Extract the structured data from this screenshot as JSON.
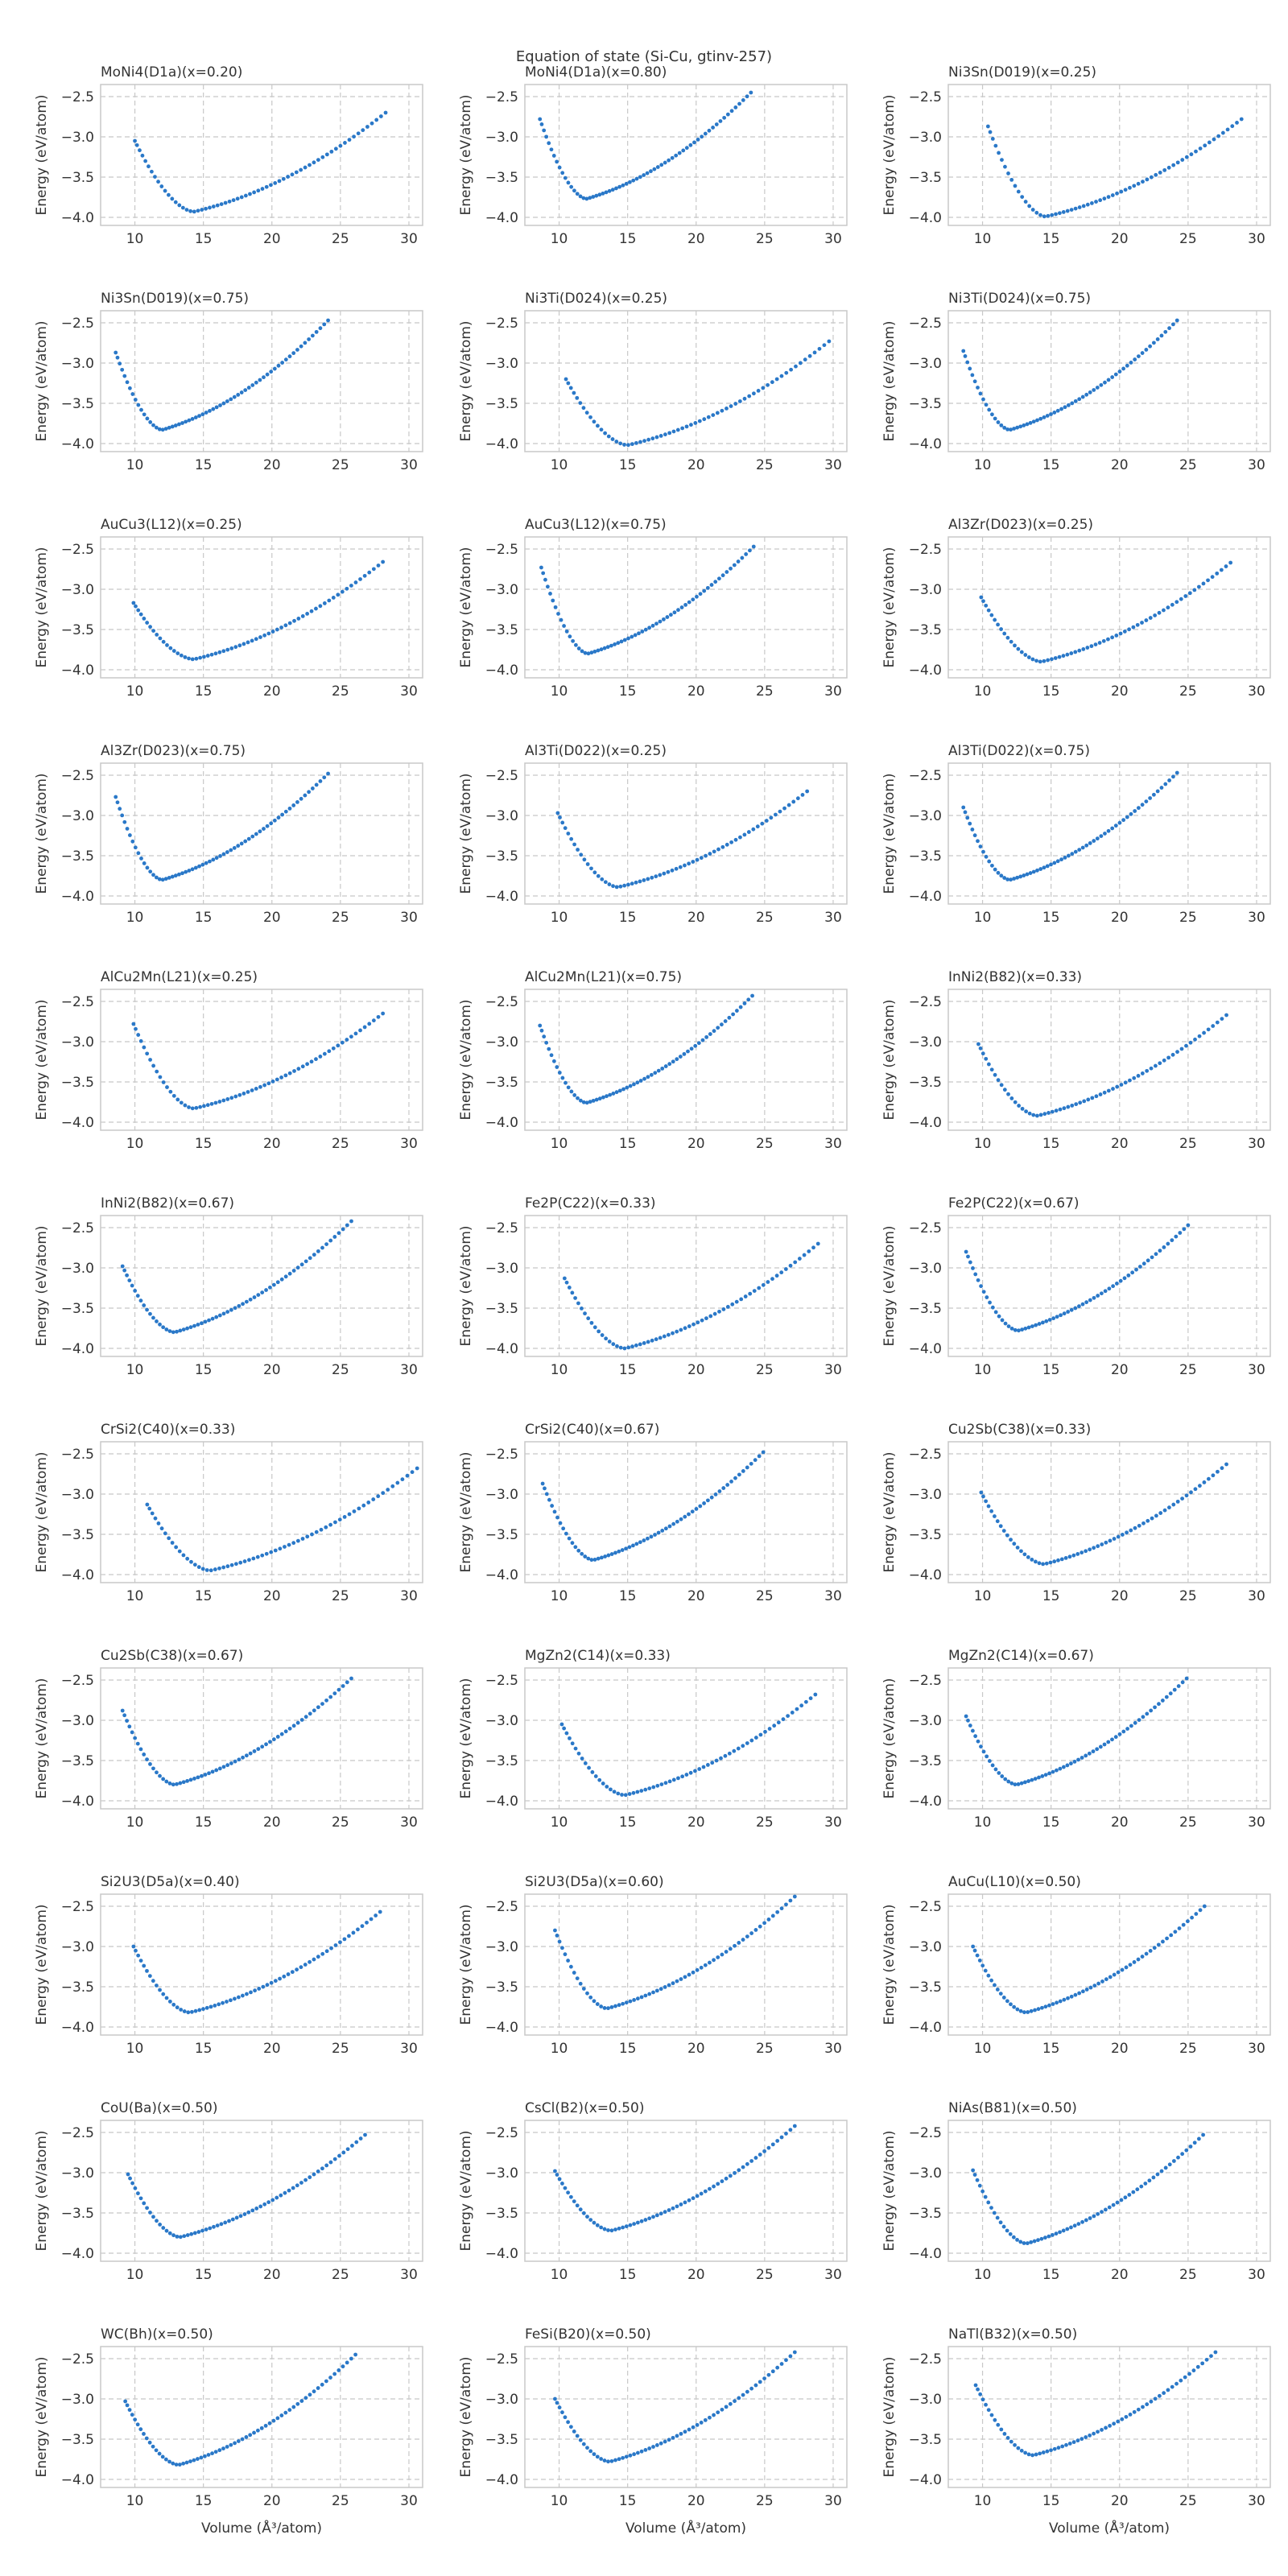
{
  "figure": {
    "title": "Equation of state (Si-Cu, gtinv-257)",
    "xlabel": "Volume (Å³/atom)",
    "ylabel": "Energy (eV/atom)",
    "marker_color": "#2a78c8",
    "grid_color": "#c8c8c8",
    "frame_color": "#c8c8c8"
  },
  "chart_data": {
    "type": "scatter",
    "layout": "grid 11 rows x 3 columns",
    "grid": true,
    "xlim": [
      7.5,
      31
    ],
    "ylim": [
      -4.1,
      -2.35
    ],
    "xticks": [
      10,
      15,
      20,
      25,
      30
    ],
    "yticks": [
      -2.5,
      -3.0,
      -3.5,
      -4.0
    ],
    "xlabel": "Volume (Å³/atom)",
    "ylabel": "Energy (eV/atom)",
    "panels": [
      {
        "title": "MoNi4(D1a)(x=0.20)",
        "curve": {
          "vmin": 10.0,
          "vmax": 28.3,
          "v0": 14.3,
          "emin": -3.93,
          "e_left": -3.05,
          "e_right": -2.7
        }
      },
      {
        "title": "MoNi4(D1a)(x=0.80)",
        "curve": {
          "vmin": 8.6,
          "vmax": 24.0,
          "v0": 12.0,
          "emin": -3.77,
          "e_left": -2.78,
          "e_right": -2.45
        }
      },
      {
        "title": "Ni3Sn(D019)(x=0.25)",
        "curve": {
          "vmin": 10.4,
          "vmax": 28.9,
          "v0": 14.6,
          "emin": -3.99,
          "e_left": -2.87,
          "e_right": -2.78
        }
      },
      {
        "title": "Ni3Sn(D019)(x=0.75)",
        "curve": {
          "vmin": 8.6,
          "vmax": 24.1,
          "v0": 12.0,
          "emin": -3.83,
          "e_left": -2.87,
          "e_right": -2.47
        }
      },
      {
        "title": "Ni3Ti(D024)(x=0.25)",
        "curve": {
          "vmin": 10.5,
          "vmax": 29.7,
          "v0": 15.0,
          "emin": -4.02,
          "e_left": -3.2,
          "e_right": -2.73
        }
      },
      {
        "title": "Ni3Ti(D024)(x=0.75)",
        "curve": {
          "vmin": 8.6,
          "vmax": 24.2,
          "v0": 12.0,
          "emin": -3.83,
          "e_left": -2.85,
          "e_right": -2.47
        }
      },
      {
        "title": "AuCu3(L12)(x=0.25)",
        "curve": {
          "vmin": 9.9,
          "vmax": 28.1,
          "v0": 14.3,
          "emin": -3.87,
          "e_left": -3.17,
          "e_right": -2.66
        }
      },
      {
        "title": "AuCu3(L12)(x=0.75)",
        "curve": {
          "vmin": 8.7,
          "vmax": 24.2,
          "v0": 12.1,
          "emin": -3.8,
          "e_left": -2.73,
          "e_right": -2.47
        }
      },
      {
        "title": "Al3Zr(D023)(x=0.25)",
        "curve": {
          "vmin": 9.9,
          "vmax": 28.1,
          "v0": 14.3,
          "emin": -3.9,
          "e_left": -3.1,
          "e_right": -2.67
        }
      },
      {
        "title": "Al3Zr(D023)(x=0.75)",
        "curve": {
          "vmin": 8.6,
          "vmax": 24.1,
          "v0": 12.0,
          "emin": -3.8,
          "e_left": -2.77,
          "e_right": -2.48
        }
      },
      {
        "title": "Al3Ti(D022)(x=0.25)",
        "curve": {
          "vmin": 9.9,
          "vmax": 28.1,
          "v0": 14.3,
          "emin": -3.89,
          "e_left": -2.97,
          "e_right": -2.7
        }
      },
      {
        "title": "Al3Ti(D022)(x=0.75)",
        "curve": {
          "vmin": 8.6,
          "vmax": 24.2,
          "v0": 12.0,
          "emin": -3.8,
          "e_left": -2.9,
          "e_right": -2.47
        }
      },
      {
        "title": "AlCu2Mn(L21)(x=0.25)",
        "curve": {
          "vmin": 9.9,
          "vmax": 28.1,
          "v0": 14.3,
          "emin": -3.83,
          "e_left": -2.78,
          "e_right": -2.65
        }
      },
      {
        "title": "AlCu2Mn(L21)(x=0.75)",
        "curve": {
          "vmin": 8.6,
          "vmax": 24.1,
          "v0": 12.0,
          "emin": -3.76,
          "e_left": -2.8,
          "e_right": -2.43
        }
      },
      {
        "title": "InNi2(B82)(x=0.33)",
        "curve": {
          "vmin": 9.7,
          "vmax": 27.8,
          "v0": 14.0,
          "emin": -3.92,
          "e_left": -3.03,
          "e_right": -2.67
        }
      },
      {
        "title": "InNi2(B82)(x=0.67)",
        "curve": {
          "vmin": 9.1,
          "vmax": 25.8,
          "v0": 12.9,
          "emin": -3.8,
          "e_left": -2.98,
          "e_right": -2.42
        }
      },
      {
        "title": "Fe2P(C22)(x=0.33)",
        "curve": {
          "vmin": 10.4,
          "vmax": 28.9,
          "v0": 14.8,
          "emin": -4.0,
          "e_left": -3.13,
          "e_right": -2.7
        }
      },
      {
        "title": "Fe2P(C22)(x=0.67)",
        "curve": {
          "vmin": 8.8,
          "vmax": 25.0,
          "v0": 12.6,
          "emin": -3.78,
          "e_left": -2.8,
          "e_right": -2.47
        }
      },
      {
        "title": "CrSi2(C40)(x=0.33)",
        "curve": {
          "vmin": 10.9,
          "vmax": 30.6,
          "v0": 15.5,
          "emin": -3.95,
          "e_left": -3.13,
          "e_right": -2.68
        }
      },
      {
        "title": "CrSi2(C40)(x=0.67)",
        "curve": {
          "vmin": 8.8,
          "vmax": 24.9,
          "v0": 12.5,
          "emin": -3.82,
          "e_left": -2.87,
          "e_right": -2.48
        }
      },
      {
        "title": "Cu2Sb(C38)(x=0.33)",
        "curve": {
          "vmin": 9.9,
          "vmax": 27.8,
          "v0": 14.5,
          "emin": -3.87,
          "e_left": -2.98,
          "e_right": -2.63
        }
      },
      {
        "title": "Cu2Sb(C38)(x=0.67)",
        "curve": {
          "vmin": 9.1,
          "vmax": 25.8,
          "v0": 12.9,
          "emin": -3.8,
          "e_left": -2.88,
          "e_right": -2.48
        }
      },
      {
        "title": "MgZn2(C14)(x=0.33)",
        "curve": {
          "vmin": 10.2,
          "vmax": 28.7,
          "v0": 14.8,
          "emin": -3.93,
          "e_left": -3.05,
          "e_right": -2.68
        }
      },
      {
        "title": "MgZn2(C14)(x=0.67)",
        "curve": {
          "vmin": 8.8,
          "vmax": 24.9,
          "v0": 12.5,
          "emin": -3.8,
          "e_left": -2.95,
          "e_right": -2.48
        }
      },
      {
        "title": "Si2U3(D5a)(x=0.40)",
        "curve": {
          "vmin": 9.9,
          "vmax": 27.9,
          "v0": 14.0,
          "emin": -3.82,
          "e_left": -3.0,
          "e_right": -2.57
        }
      },
      {
        "title": "Si2U3(D5a)(x=0.60)",
        "curve": {
          "vmin": 9.7,
          "vmax": 27.2,
          "v0": 13.5,
          "emin": -3.77,
          "e_left": -2.8,
          "e_right": -2.38
        }
      },
      {
        "title": "AuCu(L10)(x=0.50)",
        "curve": {
          "vmin": 9.3,
          "vmax": 26.2,
          "v0": 13.2,
          "emin": -3.82,
          "e_left": -3.0,
          "e_right": -2.5
        }
      },
      {
        "title": "CoU(Ba)(x=0.50)",
        "curve": {
          "vmin": 9.5,
          "vmax": 26.8,
          "v0": 13.3,
          "emin": -3.8,
          "e_left": -3.02,
          "e_right": -2.53
        }
      },
      {
        "title": "CsCl(B2)(x=0.50)",
        "curve": {
          "vmin": 9.7,
          "vmax": 27.2,
          "v0": 13.8,
          "emin": -3.72,
          "e_left": -2.98,
          "e_right": -2.42
        }
      },
      {
        "title": "NiAs(B81)(x=0.50)",
        "curve": {
          "vmin": 9.3,
          "vmax": 26.1,
          "v0": 13.2,
          "emin": -3.88,
          "e_left": -2.97,
          "e_right": -2.53
        }
      },
      {
        "title": "WC(Bh)(x=0.50)",
        "curve": {
          "vmin": 9.3,
          "vmax": 26.1,
          "v0": 13.2,
          "emin": -3.82,
          "e_left": -3.03,
          "e_right": -2.45
        }
      },
      {
        "title": "FeSi(B20)(x=0.50)",
        "curve": {
          "vmin": 9.7,
          "vmax": 27.2,
          "v0": 13.7,
          "emin": -3.78,
          "e_left": -3.0,
          "e_right": -2.42
        }
      },
      {
        "title": "NaTl(B32)(x=0.50)",
        "curve": {
          "vmin": 9.5,
          "vmax": 27.0,
          "v0": 13.7,
          "emin": -3.7,
          "e_left": -2.83,
          "e_right": -2.42
        }
      }
    ]
  }
}
